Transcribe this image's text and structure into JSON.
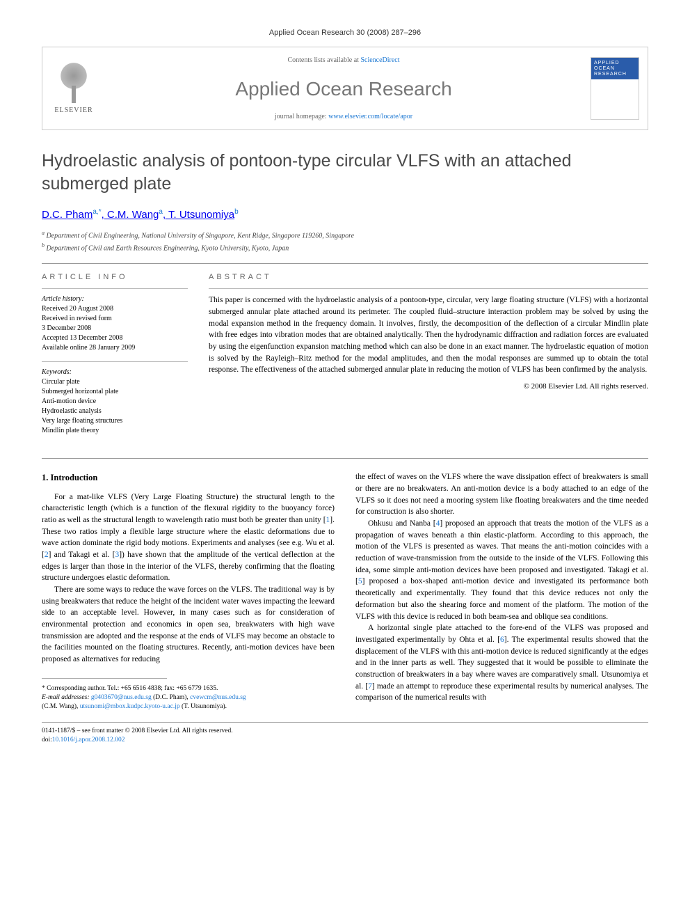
{
  "header": {
    "citation": "Applied Ocean Research 30 (2008) 287–296"
  },
  "banner": {
    "publisher": "ELSEVIER",
    "contents_prefix": "Contents lists available at ",
    "contents_link": "ScienceDirect",
    "journal_name": "Applied Ocean Research",
    "homepage_prefix": "journal homepage: ",
    "homepage_link": "www.elsevier.com/locate/apor"
  },
  "article": {
    "title": "Hydroelastic analysis of pontoon-type circular VLFS with an attached submerged plate",
    "authors_html": "D.C. Pham",
    "author1": "D.C. Pham",
    "sup1": "a,*",
    "author2": ", C.M. Wang",
    "sup2": "a",
    "author3": ", T. Utsunomiya",
    "sup3": "b",
    "affil_a_sup": "a",
    "affil_a": " Department of Civil Engineering, National University of Singapore, Kent Ridge, Singapore 119260, Singapore",
    "affil_b_sup": "b",
    "affil_b": " Department of Civil and Earth Resources Engineering, Kyoto University, Kyoto, Japan"
  },
  "info": {
    "label_info": "ARTICLE INFO",
    "history_label": "Article history:",
    "received": "Received 20 August 2008",
    "revised": "Received in revised form",
    "revised_date": "3 December 2008",
    "accepted": "Accepted 13 December 2008",
    "online": "Available online 28 January 2009",
    "keywords_label": "Keywords:",
    "kw1": "Circular plate",
    "kw2": "Submerged horizontal plate",
    "kw3": "Anti-motion device",
    "kw4": "Hydroelastic analysis",
    "kw5": "Very large floating structures",
    "kw6": "Mindlin plate theory"
  },
  "abstract": {
    "label": "ABSTRACT",
    "text": "This paper is concerned with the hydroelastic analysis of a pontoon-type, circular, very large floating structure (VLFS) with a horizontal submerged annular plate attached around its perimeter. The coupled fluid–structure interaction problem may be solved by using the modal expansion method in the frequency domain. It involves, firstly, the decomposition of the deflection of a circular Mindlin plate with free edges into vibration modes that are obtained analytically. Then the hydrodynamic diffraction and radiation forces are evaluated by using the eigenfunction expansion matching method which can also be done in an exact manner. The hydroelastic equation of motion is solved by the Rayleigh–Ritz method for the modal amplitudes, and then the modal responses are summed up to obtain the total response. The effectiveness of the attached submerged annular plate in reducing the motion of VLFS has been confirmed by the analysis.",
    "copyright": "© 2008 Elsevier Ltd. All rights reserved."
  },
  "body": {
    "section1_title": "1. Introduction",
    "p1": "For a mat-like VLFS (Very Large Floating Structure) the structural length to the characteristic length (which is a function of the flexural rigidity to the buoyancy force) ratio as well as the structural length to wavelength ratio must both be greater than unity [1]. These two ratios imply a flexible large structure where the elastic deformations due to wave action dominate the rigid body motions. Experiments and analyses (see e.g. Wu et al. [2] and Takagi et al. [3]) have shown that the amplitude of the vertical deflection at the edges is larger than those in the interior of the VLFS, thereby confirming that the floating structure undergoes elastic deformation.",
    "p2": "There are some ways to reduce the wave forces on the VLFS. The traditional way is by using breakwaters that reduce the height of the incident water waves impacting the leeward side to an acceptable level. However, in many cases such as for consideration of environmental protection and economics in open sea, breakwaters with high wave transmission are adopted and the response at the ends of VLFS may become an obstacle to the facilities mounted on the floating structures. Recently, anti-motion devices have been proposed as alternatives for reducing",
    "p3": "the effect of waves on the VLFS where the wave dissipation effect of breakwaters is small or there are no breakwaters. An anti-motion device is a body attached to an edge of the VLFS so it does not need a mooring system like floating breakwaters and the time needed for construction is also shorter.",
    "p4": "Ohkusu and Nanba [4] proposed an approach that treats the motion of the VLFS as a propagation of waves beneath a thin elastic-platform. According to this approach, the motion of the VLFS is presented as waves. That means the anti-motion coincides with a reduction of wave-transmission from the outside to the inside of the VLFS. Following this idea, some simple anti-motion devices have been proposed and investigated. Takagi et al. [5] proposed a box-shaped anti-motion device and investigated its performance both theoretically and experimentally. They found that this device reduces not only the deformation but also the shearing force and moment of the platform. The motion of the VLFS with this device is reduced in both beam-sea and oblique sea conditions.",
    "p5": "A horizontal single plate attached to the fore-end of the VLFS was proposed and investigated experimentally by Ohta et al. [6]. The experimental results showed that the displacement of the VLFS with this anti-motion device is reduced significantly at the edges and in the inner parts as well. They suggested that it would be possible to eliminate the construction of breakwaters in a bay where waves are comparatively small. Utsunomiya et al. [7] made an attempt to reproduce these experimental results by numerical analyses. The comparison of the numerical results with"
  },
  "footnote": {
    "corr_label": "* Corresponding author. Tel.: +65 6516 4838; fax: +65 6779 1635.",
    "email_label": "E-mail addresses: ",
    "email1": "g0403670@nus.edu.sg",
    "email1_name": " (D.C. Pham), ",
    "email2": "cvewcm@nus.edu.sg",
    "email2_name": " (C.M. Wang), ",
    "email3": "utsunomi@mbox.kudpc.kyoto-u.ac.jp",
    "email3_name": " (T. Utsunomiya)."
  },
  "doi": {
    "line1": "0141-1187/$ – see front matter © 2008 Elsevier Ltd. All rights reserved.",
    "prefix": "doi:",
    "link": "10.1016/j.apor.2008.12.002"
  },
  "refs": {
    "r1": "1",
    "r2": "2",
    "r3": "3",
    "r4": "4",
    "r5": "5",
    "r6": "6",
    "r7": "7"
  }
}
